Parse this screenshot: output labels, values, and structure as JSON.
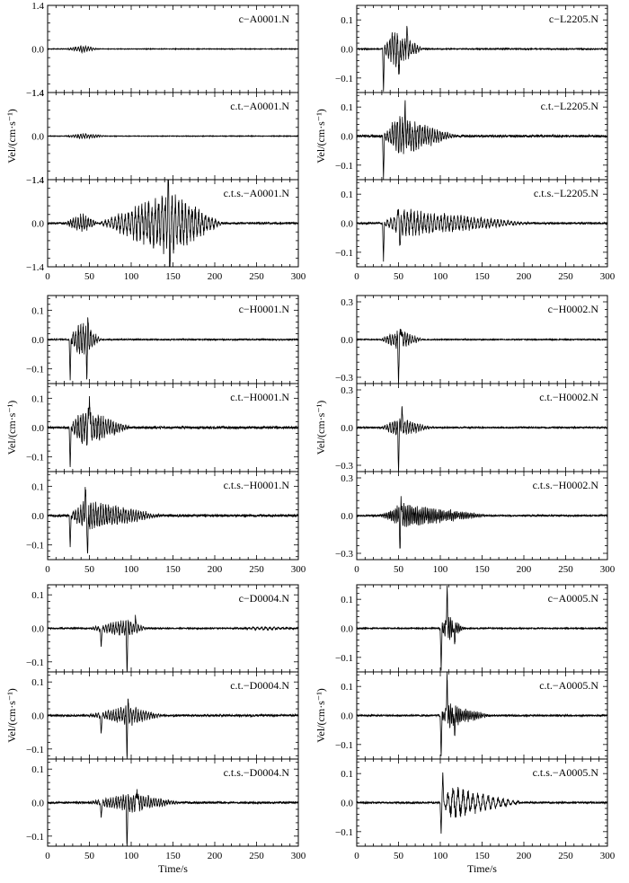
{
  "figure": {
    "xlabel": "Time/s",
    "ylabel": "Vel/(cm·s⁻¹)",
    "xlim": [
      0,
      300
    ],
    "xticks": [
      0,
      50,
      100,
      150,
      200,
      250,
      300
    ],
    "xtick_labels": [
      "0",
      "50",
      "100",
      "150",
      "200",
      "250",
      "300"
    ]
  },
  "chart_data": [
    {
      "type": "line",
      "group": "A0001",
      "column": "left",
      "row": 0,
      "ylim": [
        -1.4,
        1.4
      ],
      "yticks": [
        -1.4,
        0.0,
        1.4
      ],
      "traces": [
        {
          "label": "c−A0001.N",
          "ytick_labels": [
            "−1.4",
            "0.0",
            "1.4"
          ],
          "waveform": {
            "seed": 11,
            "amp": 0.12,
            "noise": 0.01,
            "bursts": [
              {
                "t0": 20,
                "t1": 60,
                "peak": 43,
                "amp": 0.09,
                "period": 3
              }
            ]
          }
        },
        {
          "label": "c.t.−A0001.N",
          "ytick_labels": [
            "−1.4",
            "0.0",
            "1.4"
          ],
          "waveform": {
            "seed": 12,
            "amp": 0.1,
            "noise": 0.01,
            "bursts": [
              {
                "t0": 20,
                "t1": 70,
                "peak": 45,
                "amp": 0.07,
                "period": 3
              }
            ]
          }
        },
        {
          "label": "c.t.s.−A0001.N",
          "ytick_labels": [
            "−1.4",
            "0.0",
            "1.4"
          ],
          "waveform": {
            "seed": 13,
            "amp": 1.4,
            "noise": 0.03,
            "bursts": [
              {
                "t0": 20,
                "t1": 60,
                "peak": 42,
                "amp": 0.25,
                "period": 3
              },
              {
                "t0": 60,
                "t1": 210,
                "peak": 145,
                "amp": 0.75,
                "period": 4
              }
            ],
            "spikes": [
              {
                "t": 146,
                "v": -1.38
              },
              {
                "t": 144,
                "v": 1.22
              }
            ]
          }
        }
      ]
    },
    {
      "type": "line",
      "group": "L2205",
      "column": "right",
      "row": 0,
      "ylim": [
        -0.15,
        0.15
      ],
      "yticks": [
        -0.1,
        0.0,
        0.1
      ],
      "traces": [
        {
          "label": "c−L2205.N",
          "ytick_labels": [
            "−0.1",
            "0.0",
            "0.1"
          ],
          "waveform": {
            "seed": 21,
            "amp": 0.15,
            "noise": 0.002,
            "bursts": [
              {
                "t0": 30,
                "t1": 80,
                "peak": 45,
                "amp": 0.05,
                "period": 3
              }
            ],
            "spikes": [
              {
                "t": 32,
                "v": -0.14
              },
              {
                "t": 51,
                "v": -0.09
              },
              {
                "t": 60,
                "v": 0.07
              }
            ]
          }
        },
        {
          "label": "c.t.−L2205.N",
          "ytick_labels": [
            "−0.1",
            "0.0",
            "0.1"
          ],
          "waveform": {
            "seed": 22,
            "amp": 0.15,
            "noise": 0.004,
            "bursts": [
              {
                "t0": 30,
                "t1": 120,
                "peak": 50,
                "amp": 0.05,
                "period": 3
              }
            ],
            "spikes": [
              {
                "t": 32,
                "v": -0.14
              },
              {
                "t": 58,
                "v": 0.08
              }
            ]
          }
        },
        {
          "label": "c.t.s.−L2205.N",
          "ytick_labels": [
            "−0.1",
            "0.0",
            "0.1"
          ],
          "waveform": {
            "seed": 23,
            "amp": 0.15,
            "noise": 0.003,
            "bursts": [
              {
                "t0": 30,
                "t1": 210,
                "peak": 55,
                "amp": 0.035,
                "period": 4
              }
            ],
            "spikes": [
              {
                "t": 32,
                "v": -0.13
              },
              {
                "t": 52,
                "v": -0.1
              },
              {
                "t": 50,
                "v": 0.06
              }
            ]
          }
        }
      ]
    },
    {
      "type": "line",
      "group": "H0001",
      "column": "left",
      "row": 1,
      "ylim": [
        -0.15,
        0.15
      ],
      "yticks": [
        -0.1,
        0.0,
        0.1
      ],
      "traces": [
        {
          "label": "c−H0001.N",
          "ytick_labels": [
            "−0.1",
            "0.0",
            "0.1"
          ],
          "waveform": {
            "seed": 31,
            "amp": 0.15,
            "noise": 0.002,
            "bursts": [
              {
                "t0": 25,
                "t1": 65,
                "peak": 40,
                "amp": 0.05,
                "period": 3
              }
            ],
            "spikes": [
              {
                "t": 27,
                "v": -0.14
              },
              {
                "t": 47,
                "v": -0.12
              },
              {
                "t": 48,
                "v": 0.07
              }
            ]
          }
        },
        {
          "label": "c.t.−H0001.N",
          "ytick_labels": [
            "−0.1",
            "0.0",
            "0.1"
          ],
          "waveform": {
            "seed": 32,
            "amp": 0.15,
            "noise": 0.004,
            "bursts": [
              {
                "t0": 25,
                "t1": 100,
                "peak": 42,
                "amp": 0.05,
                "period": 3
              }
            ],
            "spikes": [
              {
                "t": 27,
                "v": -0.14
              },
              {
                "t": 50,
                "v": 0.15
              }
            ]
          }
        },
        {
          "label": "c.t.s.−H0001.N",
          "ytick_labels": [
            "−0.1",
            "0.0",
            "0.1"
          ],
          "waveform": {
            "seed": 33,
            "amp": 0.15,
            "noise": 0.004,
            "bursts": [
              {
                "t0": 25,
                "t1": 140,
                "peak": 45,
                "amp": 0.04,
                "period": 3
              }
            ],
            "spikes": [
              {
                "t": 27,
                "v": -0.11
              },
              {
                "t": 48,
                "v": -0.14
              },
              {
                "t": 45,
                "v": 0.07
              }
            ]
          }
        }
      ]
    },
    {
      "type": "line",
      "group": "H0002",
      "column": "right",
      "row": 1,
      "ylim": [
        -0.35,
        0.35
      ],
      "yticks": [
        -0.3,
        0.0,
        0.3
      ],
      "traces": [
        {
          "label": "c−H0002.N",
          "ytick_labels": [
            "−0.3",
            "0.0",
            "0.3"
          ],
          "waveform": {
            "seed": 41,
            "amp": 0.35,
            "noise": 0.004,
            "bursts": [
              {
                "t0": 28,
                "t1": 80,
                "peak": 50,
                "amp": 0.06,
                "period": 3
              }
            ],
            "spikes": [
              {
                "t": 50,
                "v": -0.31
              },
              {
                "t": 53,
                "v": 0.12
              }
            ]
          }
        },
        {
          "label": "c.t.−H0002.N",
          "ytick_labels": [
            "−0.3",
            "0.0",
            "0.3"
          ],
          "waveform": {
            "seed": 42,
            "amp": 0.35,
            "noise": 0.006,
            "bursts": [
              {
                "t0": 28,
                "t1": 90,
                "peak": 50,
                "amp": 0.06,
                "period": 3
              }
            ],
            "spikes": [
              {
                "t": 50,
                "v": -0.31
              },
              {
                "t": 54,
                "v": 0.14
              }
            ]
          }
        },
        {
          "label": "c.t.s.−H0002.N",
          "ytick_labels": [
            "−0.3",
            "0.0",
            "0.3"
          ],
          "waveform": {
            "seed": 43,
            "amp": 0.35,
            "noise": 0.006,
            "bursts": [
              {
                "t0": 28,
                "t1": 160,
                "peak": 55,
                "amp": 0.07,
                "period": 2
              }
            ],
            "spikes": [
              {
                "t": 52,
                "v": -0.3
              },
              {
                "t": 53,
                "v": 0.2
              }
            ]
          }
        }
      ]
    },
    {
      "type": "line",
      "group": "D0004",
      "column": "left",
      "row": 2,
      "ylim": [
        -0.13,
        0.13
      ],
      "yticks": [
        -0.1,
        0.0,
        0.1
      ],
      "traces": [
        {
          "label": "c−D0004.N",
          "ytick_labels": [
            "−0.1",
            "0.0",
            "0.1"
          ],
          "waveform": {
            "seed": 51,
            "amp": 0.13,
            "noise": 0.002,
            "bursts": [
              {
                "t0": 48,
                "t1": 120,
                "peak": 95,
                "amp": 0.02,
                "period": 3
              },
              {
                "t0": 230,
                "t1": 300,
                "peak": 260,
                "amp": 0.004,
                "period": 5
              }
            ],
            "spikes": [
              {
                "t": 64,
                "v": -0.06
              },
              {
                "t": 95,
                "v": -0.12
              },
              {
                "t": 105,
                "v": 0.03
              }
            ]
          }
        },
        {
          "label": "c.t.−D0004.N",
          "ytick_labels": [
            "−0.1",
            "0.0",
            "0.1"
          ],
          "waveform": {
            "seed": 52,
            "amp": 0.13,
            "noise": 0.003,
            "bursts": [
              {
                "t0": 48,
                "t1": 140,
                "peak": 95,
                "amp": 0.022,
                "period": 3
              }
            ],
            "spikes": [
              {
                "t": 64,
                "v": -0.06
              },
              {
                "t": 95,
                "v": -0.12
              },
              {
                "t": 96,
                "v": 0.04
              }
            ]
          }
        },
        {
          "label": "c.t.s.−D0004.N",
          "ytick_labels": [
            "−0.1",
            "0.0",
            "0.1"
          ],
          "waveform": {
            "seed": 53,
            "amp": 0.13,
            "noise": 0.003,
            "bursts": [
              {
                "t0": 48,
                "t1": 160,
                "peak": 100,
                "amp": 0.022,
                "period": 3
              }
            ],
            "spikes": [
              {
                "t": 64,
                "v": -0.05
              },
              {
                "t": 95,
                "v": -0.13
              },
              {
                "t": 107,
                "v": 0.05
              }
            ]
          }
        }
      ]
    },
    {
      "type": "line",
      "group": "A0005",
      "column": "right",
      "row": 2,
      "ylim": [
        -0.15,
        0.15
      ],
      "yticks": [
        -0.1,
        0.0,
        0.1
      ],
      "traces": [
        {
          "label": "c−A0005.N",
          "ytick_labels": [
            "−0.1",
            "0.0",
            "0.1"
          ],
          "waveform": {
            "seed": 61,
            "amp": 0.15,
            "noise": 0.002,
            "bursts": [
              {
                "t0": 98,
                "t1": 130,
                "peak": 108,
                "amp": 0.035,
                "period": 2
              }
            ],
            "spikes": [
              {
                "t": 101,
                "v": -0.14
              },
              {
                "t": 108,
                "v": 0.13
              },
              {
                "t": 117,
                "v": -0.05
              }
            ]
          }
        },
        {
          "label": "c.t.−A0005.N",
          "ytick_labels": [
            "−0.1",
            "0.0",
            "0.1"
          ],
          "waveform": {
            "seed": 62,
            "amp": 0.15,
            "noise": 0.003,
            "bursts": [
              {
                "t0": 98,
                "t1": 160,
                "peak": 110,
                "amp": 0.03,
                "period": 2
              }
            ],
            "spikes": [
              {
                "t": 101,
                "v": -0.14
              },
              {
                "t": 108,
                "v": 0.13
              },
              {
                "t": 117,
                "v": -0.06
              }
            ]
          }
        },
        {
          "label": "c.t.s.−A0005.N",
          "ytick_labels": [
            "−0.1",
            "0.0",
            "0.1"
          ],
          "waveform": {
            "seed": 63,
            "amp": 0.15,
            "noise": 0.003,
            "bursts": [
              {
                "t0": 98,
                "t1": 200,
                "peak": 115,
                "amp": 0.04,
                "period": 6
              }
            ],
            "spikes": [
              {
                "t": 101,
                "v": -0.1
              },
              {
                "t": 103,
                "v": 0.09
              }
            ]
          }
        }
      ]
    }
  ]
}
